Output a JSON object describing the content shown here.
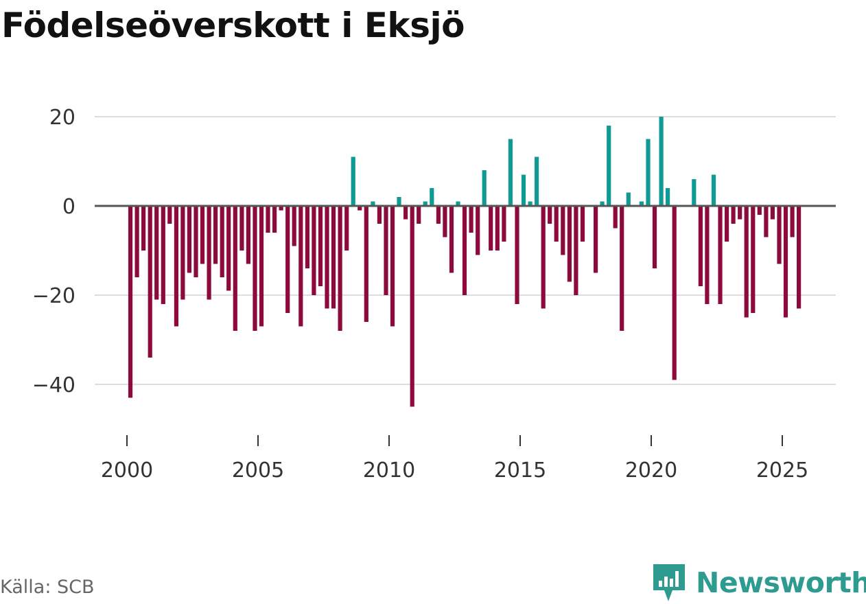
{
  "title": "Födelseöverskott i Eksjö",
  "source": "Källa: SCB",
  "brand": {
    "name": "Newsworthy",
    "logo_icon": "newsworthy-logo-icon"
  },
  "colors": {
    "positive": "#0f9b93",
    "negative": "#8c0a3c",
    "grid": "#dddddd",
    "zero_line": "#555555",
    "text": "#333333"
  },
  "chart_data": {
    "type": "bar",
    "title": "Födelseöverskott i Eksjö",
    "xlabel": "",
    "ylabel": "",
    "frequency": "quarterly",
    "start": "2000Q1",
    "x_ticks": [
      "2000",
      "2005",
      "2010",
      "2015",
      "2020",
      "2025"
    ],
    "y_ticks": [
      20,
      0,
      -20,
      -40
    ],
    "y_tick_labels": [
      "20",
      "0",
      "−20",
      "−40"
    ],
    "ylim": [
      -48,
      20
    ],
    "grid": true,
    "values": [
      -43,
      -16,
      -10,
      -34,
      -21,
      -22,
      -4,
      -27,
      -21,
      -15,
      -16,
      -13,
      -21,
      -13,
      -16,
      -19,
      -28,
      -10,
      -13,
      -28,
      -27,
      -6,
      -6,
      -1,
      -24,
      -9,
      -27,
      -14,
      -20,
      -18,
      -23,
      -23,
      -28,
      -10,
      11,
      -1,
      -26,
      1,
      -4,
      -20,
      -27,
      2,
      -3,
      -45,
      -4,
      1,
      4,
      -4,
      -7,
      -15,
      1,
      -20,
      -6,
      -11,
      8,
      -10,
      -10,
      -8,
      15,
      -22,
      7,
      1,
      11,
      -23,
      -4,
      -8,
      -11,
      -17,
      -20,
      -8,
      0,
      -15,
      1,
      18,
      -5,
      -28,
      3,
      0,
      1,
      15,
      -14,
      20,
      4,
      -39,
      0,
      0,
      6,
      -18,
      -22,
      7,
      -22,
      -8,
      -4,
      -3,
      -25,
      -24,
      -2,
      -7,
      -3,
      -13,
      -25,
      -7,
      -23
    ]
  }
}
